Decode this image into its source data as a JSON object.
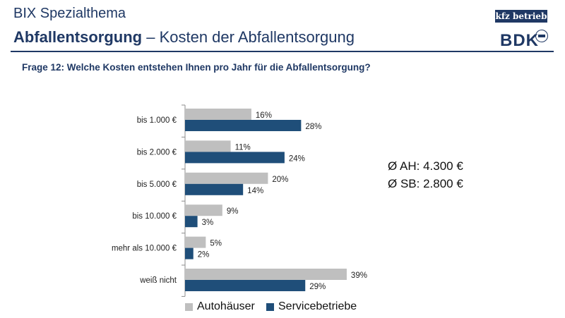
{
  "header": {
    "supertitle": "BIX Spezialthema",
    "title_bold": "Abfallentsorgung",
    "title_rest": " – Kosten der Abfallentsorgung",
    "question": "Frage 12: Welche Kosten entstehen Ihnen pro Jahr für die Abfallentsorgung?"
  },
  "logos": {
    "kfz": "kfz betrieb",
    "bdk": "BDK"
  },
  "averages": {
    "ah": "Ø AH: 4.300 €",
    "sb": "Ø SB: 2.800 €"
  },
  "colors": {
    "autohaeuser": "#bfbfbf",
    "servicebetriebe": "#1f4e79",
    "brand": "#1f3864"
  },
  "chart_data": {
    "type": "bar",
    "orientation": "horizontal",
    "categories": [
      "bis 1.000 €",
      "bis 2.000 €",
      "bis 5.000 €",
      "bis 10.000 €",
      "mehr als 10.000 €",
      "weiß nicht"
    ],
    "series": [
      {
        "name": "Autohäuser",
        "values": [
          16,
          11,
          20,
          9,
          5,
          39
        ],
        "labels": [
          "16%",
          "11%",
          "20%",
          "9%",
          "5%",
          "39%"
        ]
      },
      {
        "name": "Servicebetriebe",
        "values": [
          28,
          24,
          14,
          3,
          2,
          29
        ],
        "labels": [
          "28%",
          "24%",
          "14%",
          "3%",
          "2%",
          "29%"
        ]
      }
    ],
    "xlim": [
      0,
      45
    ],
    "legend": "bottom",
    "grid": false
  }
}
